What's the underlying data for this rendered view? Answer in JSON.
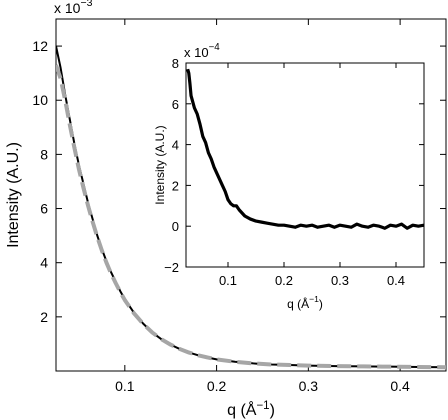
{
  "chart_data": [
    {
      "type": "line",
      "role": "main",
      "xlabel": "q (Å",
      "xlabel_sup": "−1",
      "xlabel_close": ")",
      "ylabel": "Intensity (A.U.)",
      "y_exponent_label": "x 10",
      "y_exponent_power": "−3",
      "xlim": [
        0.025,
        0.45
      ],
      "ylim": [
        0,
        13
      ],
      "xticks": [
        0.1,
        0.2,
        0.3,
        0.4
      ],
      "xtick_labels": [
        "0.1",
        "0.2",
        "0.3",
        "0.4"
      ],
      "yticks": [
        2,
        4,
        6,
        8,
        10,
        12
      ],
      "ytick_labels": [
        "2",
        "4",
        "6",
        "8",
        "10",
        "12"
      ],
      "grid": false,
      "series": [
        {
          "style": "solid",
          "color": "#000000",
          "x": [
            0.025,
            0.03,
            0.035,
            0.04,
            0.045,
            0.05,
            0.055,
            0.06,
            0.065,
            0.07,
            0.075,
            0.08,
            0.085,
            0.09,
            0.095,
            0.1,
            0.11,
            0.12,
            0.13,
            0.14,
            0.15,
            0.16,
            0.17,
            0.18,
            0.19,
            0.2,
            0.22,
            0.24,
            0.26,
            0.28,
            0.3,
            0.33,
            0.36,
            0.39,
            0.42,
            0.45
          ],
          "y": [
            12.0,
            11.2,
            10.2,
            9.3,
            8.4,
            7.6,
            6.9,
            6.2,
            5.6,
            5.0,
            4.5,
            4.05,
            3.65,
            3.3,
            2.95,
            2.65,
            2.15,
            1.75,
            1.42,
            1.17,
            0.97,
            0.81,
            0.68,
            0.58,
            0.5,
            0.43,
            0.34,
            0.28,
            0.24,
            0.22,
            0.2,
            0.18,
            0.17,
            0.16,
            0.15,
            0.14
          ]
        },
        {
          "style": "dashed",
          "color": "#a6a6a6",
          "x": [
            0.025,
            0.03,
            0.035,
            0.04,
            0.045,
            0.05,
            0.055,
            0.06,
            0.065,
            0.07,
            0.075,
            0.08,
            0.085,
            0.09,
            0.095,
            0.1,
            0.11,
            0.12,
            0.13,
            0.14,
            0.15,
            0.16,
            0.17,
            0.18,
            0.19,
            0.2,
            0.22,
            0.24,
            0.26,
            0.28,
            0.3,
            0.33,
            0.36,
            0.39,
            0.42,
            0.45
          ],
          "y": [
            11.3,
            10.8,
            10.0,
            9.1,
            8.25,
            7.45,
            6.75,
            6.1,
            5.5,
            4.95,
            4.45,
            4.0,
            3.6,
            3.25,
            2.92,
            2.62,
            2.13,
            1.74,
            1.42,
            1.17,
            0.97,
            0.81,
            0.68,
            0.58,
            0.5,
            0.43,
            0.34,
            0.28,
            0.24,
            0.22,
            0.2,
            0.18,
            0.17,
            0.16,
            0.15,
            0.14
          ]
        }
      ]
    },
    {
      "type": "line",
      "role": "inset",
      "xlabel": "q (Å",
      "xlabel_sup": "−1",
      "xlabel_close": ")",
      "ylabel": "Intensity (A.U.)",
      "y_exponent_label": "x 10",
      "y_exponent_power": "−4",
      "xlim": [
        0.025,
        0.45
      ],
      "ylim": [
        -2,
        8
      ],
      "xticks": [
        0.1,
        0.2,
        0.3,
        0.4
      ],
      "xtick_labels": [
        "0.1",
        "0.2",
        "0.3",
        "0.4"
      ],
      "yticks": [
        -2,
        0,
        2,
        4,
        6,
        8
      ],
      "ytick_labels": [
        "−2",
        "0",
        "2",
        "4",
        "6",
        "8"
      ],
      "grid": false,
      "series": [
        {
          "style": "solid",
          "color": "#000000",
          "x": [
            0.028,
            0.03,
            0.032,
            0.034,
            0.036,
            0.04,
            0.045,
            0.05,
            0.055,
            0.06,
            0.065,
            0.07,
            0.075,
            0.08,
            0.085,
            0.09,
            0.095,
            0.1,
            0.105,
            0.11,
            0.115,
            0.12,
            0.13,
            0.14,
            0.15,
            0.16,
            0.17,
            0.18,
            0.19,
            0.2,
            0.21,
            0.22,
            0.23,
            0.24,
            0.25,
            0.26,
            0.27,
            0.28,
            0.29,
            0.3,
            0.31,
            0.32,
            0.33,
            0.34,
            0.35,
            0.36,
            0.37,
            0.38,
            0.39,
            0.4,
            0.41,
            0.42,
            0.43,
            0.44,
            0.45
          ],
          "y": [
            7.7,
            7.5,
            7.0,
            6.4,
            6.2,
            5.8,
            5.5,
            5.0,
            4.4,
            4.1,
            3.6,
            3.3,
            2.9,
            2.6,
            2.3,
            2.0,
            1.7,
            1.3,
            1.1,
            1.0,
            1.0,
            0.8,
            0.5,
            0.35,
            0.25,
            0.2,
            0.15,
            0.1,
            0.05,
            0.05,
            0.0,
            -0.05,
            0.05,
            0.0,
            0.05,
            -0.05,
            0.0,
            0.05,
            -0.05,
            0.05,
            0.0,
            -0.05,
            0.1,
            0.0,
            -0.05,
            0.05,
            0.0,
            -0.1,
            0.05,
            0.0,
            0.1,
            -0.1,
            0.05,
            0.0,
            0.05
          ]
        }
      ]
    }
  ]
}
